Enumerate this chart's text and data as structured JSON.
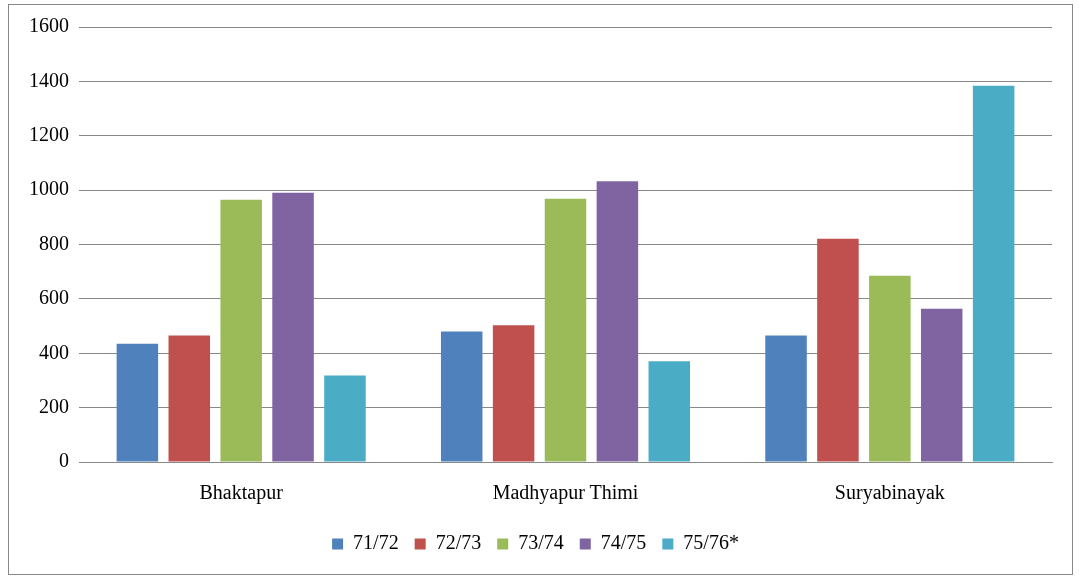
{
  "chart_data": {
    "type": "bar",
    "categories": [
      "Bhaktapur",
      "Madhyapur Thimi",
      "Suryabinayak"
    ],
    "series": [
      {
        "name": "71/72",
        "color": "#4f81bd",
        "values": [
          435,
          480,
          465
        ]
      },
      {
        "name": "72/73",
        "color": "#c0504d",
        "values": [
          465,
          503,
          821
        ]
      },
      {
        "name": "73/74",
        "color": "#9bbb59",
        "values": [
          965,
          968,
          685
        ]
      },
      {
        "name": "74/75",
        "color": "#8064a2",
        "values": [
          990,
          1033,
          564
        ]
      },
      {
        "name": "75/76*",
        "color": "#4bacc6",
        "values": [
          318,
          371,
          1384
        ]
      }
    ],
    "ylim": [
      0,
      1600
    ],
    "yticks": [
      0,
      200,
      400,
      600,
      800,
      1000,
      1200,
      1400,
      1600
    ],
    "grid": "y",
    "legend": "bottom"
  }
}
